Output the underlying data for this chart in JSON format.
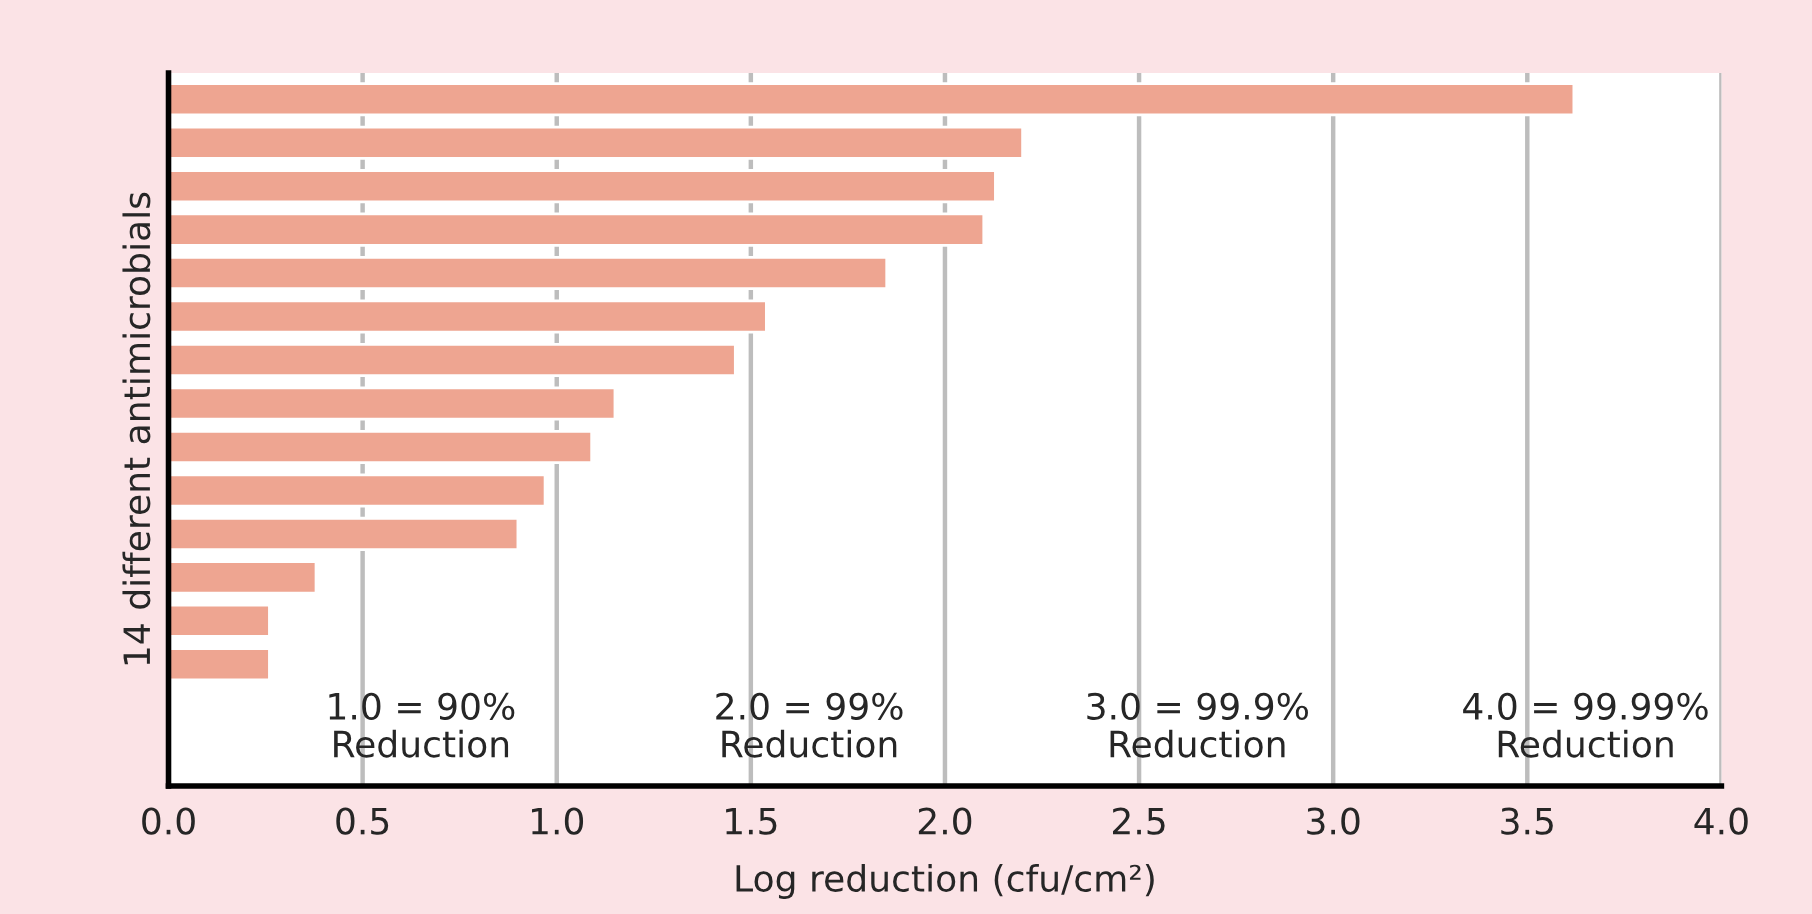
{
  "chart_data": {
    "type": "bar",
    "orientation": "horizontal",
    "categories": [
      null,
      null,
      null,
      null,
      null,
      null,
      null,
      null,
      null,
      null,
      null,
      null,
      null,
      null
    ],
    "values": [
      3.62,
      2.2,
      2.13,
      2.1,
      1.85,
      1.54,
      1.46,
      1.15,
      1.09,
      0.97,
      0.9,
      0.38,
      0.26,
      0.26
    ],
    "color": "#eea591",
    "xlim": [
      0,
      4.0
    ],
    "xticks": [
      {
        "value": 0,
        "label": "0.0"
      },
      0.5,
      {
        "value": 1,
        "label": "1.0"
      },
      1.5,
      {
        "value": 2,
        "label": "2.0"
      },
      2.5,
      {
        "value": 3,
        "label": "3.0"
      },
      3.5,
      {
        "value": 4,
        "label": "4.0"
      }
    ],
    "xlabel": "Log reduction (cfu/cm²)",
    "ylabel": "14 different antimicrobials",
    "annotations": [
      "1.0 = 90%\nReduction",
      "2.0 = 99%\nReduction",
      "3.0 = 99.9%\nReduction",
      "4.0 = 99.99%\nReduction"
    ],
    "grid": "x",
    "tick_labels": "x"
  }
}
